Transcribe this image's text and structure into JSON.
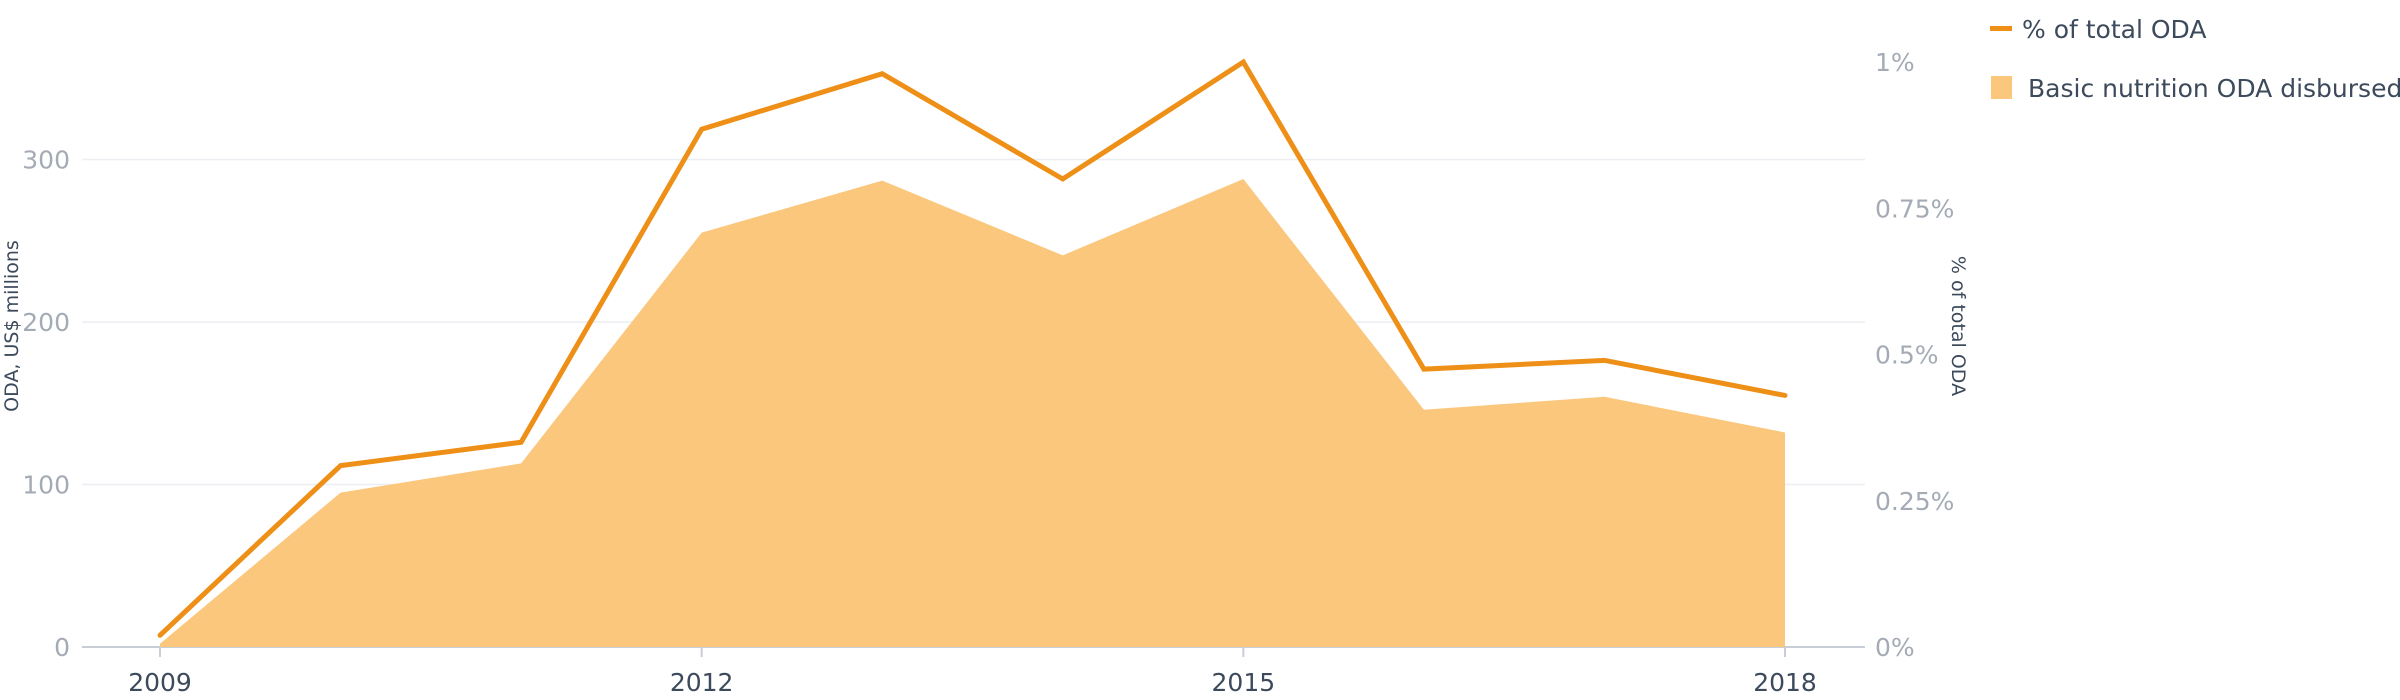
{
  "chart_data": {
    "type": "area",
    "x": [
      2009,
      2010,
      2011,
      2012,
      2013,
      2014,
      2015,
      2016,
      2017,
      2018
    ],
    "x_tick_labels": [
      "2009",
      "2012",
      "2015",
      "2018"
    ],
    "series": [
      {
        "name": "Basic nutrition ODA disbursed",
        "type": "area",
        "axis": "left",
        "color": "#fac77c",
        "values": [
          2,
          95,
          113,
          255,
          287,
          241,
          288,
          146,
          154,
          132
        ]
      },
      {
        "name": "% of total ODA",
        "type": "line",
        "axis": "right",
        "color": "#ee9018",
        "values": [
          0.02,
          0.31,
          0.35,
          0.885,
          0.98,
          0.8,
          1.0,
          0.475,
          0.49,
          0.43
        ]
      }
    ],
    "ylabel": "ODA, US$ millions",
    "ylim": [
      0,
      360
    ],
    "y_ticks": [
      0,
      100,
      200,
      300
    ],
    "y_tick_labels": [
      "0",
      "100",
      "200",
      "300"
    ],
    "y2label": "% of total ODA",
    "y2lim": [
      0,
      1
    ],
    "y2_ticks": [
      0,
      0.25,
      0.5,
      0.75,
      1
    ],
    "y2_tick_labels": [
      "0%",
      "0.25%",
      "0.5%",
      "0.75%",
      "1%"
    ],
    "grid": true,
    "legend_position": "top-right"
  }
}
